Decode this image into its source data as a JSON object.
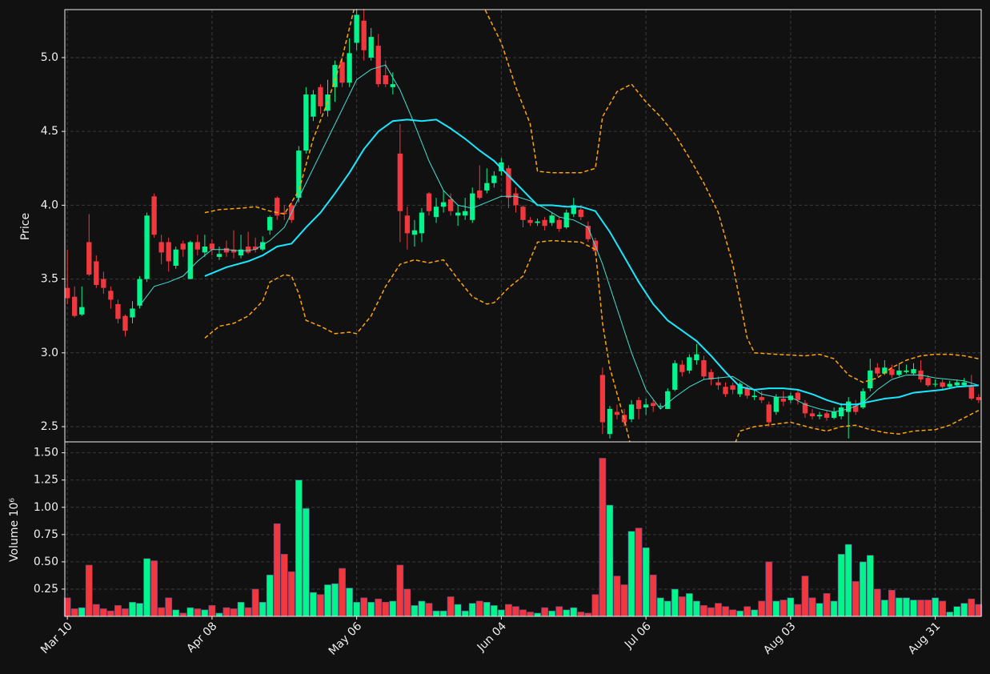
{
  "chart_data": {
    "type": "candlestick",
    "categories": [
      "Mar 10",
      null,
      null,
      null,
      null,
      null,
      null,
      null,
      null,
      null,
      null,
      null,
      null,
      null,
      null,
      null,
      null,
      null,
      null,
      null,
      "Apr 08",
      null,
      null,
      null,
      null,
      null,
      null,
      null,
      null,
      null,
      null,
      null,
      null,
      null,
      null,
      null,
      null,
      null,
      null,
      null,
      "May 06",
      null,
      null,
      null,
      null,
      null,
      null,
      null,
      null,
      null,
      null,
      null,
      null,
      null,
      null,
      null,
      null,
      null,
      null,
      null,
      "Jun 04",
      null,
      null,
      null,
      null,
      null,
      null,
      null,
      null,
      null,
      null,
      null,
      null,
      null,
      null,
      null,
      null,
      null,
      null,
      null,
      "Jul 06",
      null,
      null,
      null,
      null,
      null,
      null,
      null,
      null,
      null,
      null,
      null,
      null,
      null,
      null,
      null,
      null,
      null,
      null,
      null,
      "Aug 03",
      null,
      null,
      null,
      null,
      null,
      null,
      null,
      null,
      null,
      null,
      null,
      null,
      null,
      null,
      null,
      null,
      null,
      null,
      null,
      "Aug 31",
      null,
      null,
      null,
      null,
      null,
      null
    ],
    "open": [
      3.44,
      3.38,
      3.26,
      3.75,
      3.62,
      3.5,
      3.42,
      3.33,
      3.25,
      3.24,
      3.32,
      3.5,
      4.06,
      3.75,
      3.75,
      3.59,
      3.74,
      3.5,
      3.75,
      3.68,
      3.74,
      3.65,
      3.71,
      3.7,
      3.66,
      3.72,
      3.72,
      3.7,
      3.83,
      4.05,
      3.95,
      4.0,
      4.05,
      4.37,
      4.6,
      4.8,
      4.64,
      4.8,
      4.97,
      4.83,
      5.1,
      5.25,
      5.0,
      5.08,
      4.88,
      4.8,
      4.35,
      3.93,
      3.8,
      3.81,
      4.08,
      3.92,
      3.99,
      4.04,
      3.93,
      3.93,
      3.9,
      4.1,
      4.1,
      4.15,
      4.23,
      4.25,
      4.08,
      3.99,
      3.9,
      3.88,
      3.9,
      3.88,
      3.9,
      3.85,
      3.94,
      3.97,
      3.86,
      3.76,
      2.85,
      2.45,
      2.6,
      2.58,
      2.55,
      2.68,
      2.63,
      2.66,
      2.64,
      2.62,
      2.75,
      2.92,
      2.88,
      2.95,
      2.95,
      2.87,
      2.8,
      2.77,
      2.78,
      2.72,
      2.76,
      2.7,
      2.7,
      2.65,
      2.6,
      2.69,
      2.68,
      2.73,
      2.66,
      2.59,
      2.57,
      2.59,
      2.56,
      2.57,
      2.6,
      2.64,
      2.63,
      2.76,
      2.9,
      2.86,
      2.89,
      2.85,
      2.87,
      2.86,
      2.88,
      2.83,
      2.79,
      2.8,
      2.77,
      2.78,
      2.78,
      2.77,
      2.7
    ],
    "high": [
      3.7,
      3.45,
      3.45,
      3.94,
      3.66,
      3.55,
      3.45,
      3.36,
      3.26,
      3.35,
      3.52,
      3.95,
      4.08,
      3.8,
      3.78,
      3.72,
      3.76,
      3.76,
      3.8,
      3.8,
      3.77,
      3.72,
      3.76,
      3.83,
      3.8,
      3.82,
      3.78,
      3.79,
      3.93,
      4.06,
      4.0,
      4.02,
      4.4,
      4.8,
      4.78,
      4.82,
      4.85,
      4.98,
      5.0,
      5.13,
      5.33,
      5.33,
      5.2,
      5.16,
      4.98,
      4.9,
      4.55,
      3.99,
      3.9,
      3.98,
      4.09,
      4.05,
      4.1,
      4.08,
      4.0,
      4.05,
      4.12,
      4.27,
      4.25,
      4.23,
      4.32,
      4.27,
      4.12,
      4.0,
      3.92,
      3.91,
      3.92,
      3.95,
      3.92,
      3.97,
      4.05,
      4.0,
      3.89,
      3.78,
      2.9,
      2.64,
      2.65,
      2.62,
      2.68,
      2.7,
      2.69,
      2.68,
      2.66,
      2.76,
      2.95,
      2.95,
      2.99,
      3.06,
      2.98,
      2.89,
      2.84,
      2.8,
      2.8,
      2.8,
      2.78,
      2.75,
      2.74,
      2.67,
      2.72,
      2.74,
      2.73,
      2.75,
      2.68,
      2.62,
      2.6,
      2.61,
      2.63,
      2.66,
      2.7,
      2.68,
      2.76,
      2.96,
      2.93,
      2.95,
      2.92,
      2.93,
      2.92,
      2.93,
      2.95,
      2.85,
      2.82,
      2.82,
      2.81,
      2.82,
      2.83,
      2.85,
      2.72
    ],
    "low": [
      3.33,
      3.24,
      3.25,
      3.52,
      3.44,
      3.4,
      3.3,
      3.2,
      3.11,
      3.2,
      3.3,
      3.48,
      3.78,
      3.6,
      3.55,
      3.57,
      3.65,
      3.5,
      3.66,
      3.65,
      3.66,
      3.63,
      3.65,
      3.64,
      3.64,
      3.67,
      3.68,
      3.69,
      3.8,
      3.9,
      3.9,
      3.88,
      4.02,
      4.35,
      4.57,
      4.62,
      4.6,
      4.7,
      4.8,
      4.8,
      5.05,
      4.98,
      4.98,
      4.8,
      4.8,
      4.75,
      3.75,
      3.7,
      3.72,
      3.75,
      3.93,
      3.88,
      3.95,
      3.93,
      3.86,
      3.9,
      3.88,
      4.04,
      4.08,
      4.12,
      4.2,
      3.98,
      3.95,
      3.85,
      3.86,
      3.86,
      3.83,
      3.86,
      3.82,
      3.84,
      3.92,
      3.9,
      3.75,
      3.66,
      2.45,
      2.42,
      2.55,
      2.5,
      2.53,
      2.55,
      2.58,
      2.6,
      2.62,
      2.62,
      2.74,
      2.84,
      2.86,
      2.92,
      2.82,
      2.78,
      2.75,
      2.7,
      2.72,
      2.7,
      2.69,
      2.68,
      2.66,
      2.5,
      2.58,
      2.64,
      2.66,
      2.65,
      2.56,
      2.55,
      2.55,
      2.54,
      2.55,
      2.55,
      2.42,
      2.58,
      2.62,
      2.74,
      2.84,
      2.85,
      2.83,
      2.84,
      2.86,
      2.85,
      2.8,
      2.77,
      2.77,
      2.75,
      2.76,
      2.77,
      2.77,
      2.68,
      2.66
    ],
    "close": [
      3.37,
      3.25,
      3.31,
      3.53,
      3.46,
      3.44,
      3.36,
      3.23,
      3.15,
      3.3,
      3.5,
      3.93,
      3.8,
      3.68,
      3.62,
      3.7,
      3.7,
      3.75,
      3.7,
      3.72,
      3.7,
      3.67,
      3.68,
      3.68,
      3.7,
      3.68,
      3.7,
      3.75,
      3.92,
      3.93,
      3.94,
      3.9,
      4.37,
      4.75,
      4.75,
      4.67,
      4.75,
      4.95,
      4.83,
      5.03,
      5.29,
      5.05,
      5.14,
      4.82,
      4.82,
      4.82,
      3.96,
      3.81,
      3.83,
      3.95,
      3.96,
      3.99,
      4.02,
      3.96,
      3.95,
      3.96,
      4.08,
      4.05,
      4.15,
      4.2,
      4.29,
      4.05,
      4.0,
      3.9,
      3.88,
      3.89,
      3.86,
      3.93,
      3.84,
      3.95,
      4.0,
      3.92,
      3.77,
      3.69,
      2.53,
      2.62,
      2.58,
      2.53,
      2.65,
      2.62,
      2.65,
      2.64,
      2.64,
      2.74,
      2.93,
      2.87,
      2.97,
      2.99,
      2.84,
      2.82,
      2.78,
      2.72,
      2.75,
      2.79,
      2.71,
      2.71,
      2.68,
      2.53,
      2.7,
      2.67,
      2.71,
      2.68,
      2.59,
      2.57,
      2.58,
      2.56,
      2.6,
      2.63,
      2.67,
      2.6,
      2.74,
      2.88,
      2.86,
      2.9,
      2.85,
      2.88,
      2.88,
      2.89,
      2.82,
      2.78,
      2.79,
      2.77,
      2.79,
      2.8,
      2.8,
      2.69,
      2.68
    ],
    "volume": [
      0.17,
      0.07,
      0.08,
      0.47,
      0.11,
      0.07,
      0.05,
      0.1,
      0.07,
      0.13,
      0.12,
      0.53,
      0.51,
      0.08,
      0.17,
      0.06,
      0.03,
      0.08,
      0.07,
      0.06,
      0.1,
      0.03,
      0.08,
      0.07,
      0.13,
      0.08,
      0.25,
      0.13,
      0.38,
      0.85,
      0.57,
      0.41,
      1.25,
      0.99,
      0.22,
      0.2,
      0.29,
      0.3,
      0.44,
      0.26,
      0.13,
      0.17,
      0.13,
      0.16,
      0.13,
      0.14,
      0.47,
      0.25,
      0.1,
      0.14,
      0.12,
      0.05,
      0.05,
      0.18,
      0.11,
      0.05,
      0.12,
      0.14,
      0.13,
      0.1,
      0.06,
      0.11,
      0.09,
      0.06,
      0.04,
      0.03,
      0.08,
      0.05,
      0.09,
      0.06,
      0.08,
      0.04,
      0.03,
      0.2,
      1.45,
      1.02,
      0.37,
      0.29,
      0.78,
      0.81,
      0.63,
      0.38,
      0.17,
      0.14,
      0.25,
      0.18,
      0.21,
      0.14,
      0.1,
      0.08,
      0.12,
      0.09,
      0.06,
      0.05,
      0.09,
      0.06,
      0.14,
      0.5,
      0.14,
      0.15,
      0.17,
      0.11,
      0.37,
      0.17,
      0.12,
      0.21,
      0.14,
      0.57,
      0.66,
      0.32,
      0.5,
      0.56,
      0.25,
      0.15,
      0.24,
      0.17,
      0.17,
      0.15,
      0.15,
      0.15,
      0.17,
      0.14,
      0.04,
      0.09,
      0.12,
      0.16,
      0.11
    ],
    "up_color": "#00f58c",
    "down_color": "#f2383f",
    "ylabel": "Price",
    "ylim": [
      2.397,
      5.325
    ],
    "yticks": [
      {
        "value": 2.5,
        "label": "2.5"
      },
      {
        "value": 3.0,
        "label": "3.0"
      },
      {
        "value": 3.5,
        "label": "3.5"
      },
      {
        "value": 4.0,
        "label": "4.0"
      },
      {
        "value": 4.5,
        "label": "4.5"
      },
      {
        "value": 5.0,
        "label": "5.0"
      }
    ],
    "volume_ylabel": "Volume  10⁶",
    "volume_ylim": [
      0,
      1.6
    ],
    "volume_yticks": [
      0.25,
      {
        "value": 0.5,
        "label": "0.50"
      },
      0.75,
      {
        "value": 1.0,
        "label": "1.00"
      },
      1.25,
      {
        "value": 1.5,
        "label": "1.50"
      }
    ],
    "grid": true,
    "overlays": [
      {
        "color": "#40e0d0",
        "width": 1,
        "dash": false,
        "x": [
          10,
          12,
          14,
          16,
          18,
          20,
          22,
          24,
          26,
          28,
          30,
          32,
          34,
          36,
          38,
          40,
          42,
          44,
          46,
          48,
          50,
          52,
          54,
          56,
          58,
          60,
          62,
          64,
          66,
          68,
          70,
          72,
          74,
          76,
          78,
          80,
          82,
          84,
          86,
          88,
          90,
          92,
          94,
          96,
          98,
          100,
          102,
          104,
          106,
          108,
          110,
          112,
          114,
          116,
          118,
          120,
          122,
          124,
          126
        ],
        "values": [
          3.32,
          3.45,
          3.48,
          3.52,
          3.62,
          3.7,
          3.7,
          3.69,
          3.7,
          3.76,
          3.85,
          4.05,
          4.25,
          4.45,
          4.65,
          4.85,
          4.92,
          4.95,
          4.78,
          4.55,
          4.3,
          4.1,
          4.0,
          3.98,
          4.02,
          4.06,
          4.06,
          4.03,
          3.98,
          3.92,
          3.9,
          3.85,
          3.6,
          3.3,
          3.0,
          2.75,
          2.62,
          2.7,
          2.77,
          2.82,
          2.83,
          2.84,
          2.78,
          2.72,
          2.7,
          2.7,
          2.65,
          2.62,
          2.6,
          2.62,
          2.66,
          2.75,
          2.82,
          2.85,
          2.85,
          2.83,
          2.82,
          2.81,
          2.78
        ]
      },
      {
        "color": "#18e8ff",
        "width": 2,
        "dash": false,
        "x": [
          19,
          22,
          25,
          27,
          29,
          31,
          33,
          35,
          37,
          39,
          41,
          43,
          45,
          47,
          49,
          51,
          53,
          55,
          57,
          59,
          61,
          63,
          65,
          67,
          69,
          71,
          73,
          75,
          77,
          79,
          81,
          83,
          85,
          87,
          89,
          91,
          93,
          95,
          97,
          99,
          101,
          103,
          105,
          107,
          109,
          111,
          113,
          115,
          117,
          119,
          121,
          123,
          126
        ],
        "values": [
          3.52,
          3.58,
          3.62,
          3.66,
          3.72,
          3.74,
          3.85,
          3.95,
          4.08,
          4.22,
          4.38,
          4.5,
          4.57,
          4.58,
          4.57,
          4.58,
          4.52,
          4.45,
          4.37,
          4.3,
          4.2,
          4.1,
          4.0,
          4.0,
          3.99,
          3.99,
          3.96,
          3.82,
          3.65,
          3.48,
          3.33,
          3.22,
          3.15,
          3.08,
          2.98,
          2.87,
          2.77,
          2.75,
          2.76,
          2.76,
          2.75,
          2.72,
          2.68,
          2.65,
          2.65,
          2.67,
          2.69,
          2.7,
          2.73,
          2.74,
          2.75,
          2.77,
          2.78
        ]
      },
      {
        "color": "#ffa500",
        "width": 1.5,
        "dash": true,
        "x": [
          19,
          21,
          24,
          26,
          28,
          30,
          32,
          34,
          36,
          38,
          40,
          41,
          57,
          58,
          60,
          62,
          64,
          65,
          67,
          71,
          73,
          74,
          76,
          78,
          80,
          82,
          84,
          86,
          88,
          90,
          92,
          94,
          95,
          98,
          102,
          104,
          106,
          108,
          110,
          112,
          114,
          116,
          118,
          120,
          122,
          124,
          126
        ],
        "values": [
          3.95,
          3.97,
          3.98,
          3.99,
          3.96,
          3.94,
          4.1,
          4.45,
          4.7,
          5.0,
          5.4,
          null,
          5.4,
          5.3,
          5.1,
          4.8,
          4.55,
          4.23,
          4.22,
          4.22,
          4.25,
          4.6,
          4.77,
          4.82,
          4.7,
          4.6,
          4.48,
          4.32,
          4.15,
          3.95,
          3.6,
          3.1,
          3.0,
          2.99,
          2.98,
          2.99,
          2.96,
          2.85,
          2.8,
          2.83,
          2.9,
          2.95,
          2.98,
          2.99,
          2.99,
          2.98,
          2.96
        ]
      },
      {
        "color": "#ffa500",
        "width": 1.5,
        "dash": true,
        "x": [
          19,
          21,
          23,
          25,
          27,
          28,
          30,
          31,
          32,
          33,
          35,
          37,
          39,
          40,
          42,
          44,
          46,
          48,
          50,
          52,
          54,
          56,
          58,
          59,
          61,
          63,
          65,
          67,
          71,
          73,
          74,
          75,
          77,
          78,
          85,
          92,
          93,
          95,
          100,
          103,
          105,
          107,
          109,
          111,
          113,
          115,
          117,
          120,
          122,
          124,
          126
        ],
        "values": [
          3.1,
          3.18,
          3.2,
          3.25,
          3.35,
          3.48,
          3.53,
          3.52,
          3.4,
          3.22,
          3.18,
          3.13,
          3.14,
          3.13,
          3.25,
          3.45,
          3.6,
          3.63,
          3.61,
          3.63,
          3.5,
          3.38,
          3.33,
          3.34,
          3.44,
          3.52,
          3.75,
          3.76,
          3.75,
          3.7,
          3.2,
          2.9,
          2.55,
          2.35,
          null,
          2.35,
          2.47,
          2.5,
          2.53,
          2.49,
          2.47,
          2.5,
          2.51,
          2.48,
          2.46,
          2.45,
          2.47,
          2.48,
          2.51,
          2.56,
          2.61
        ]
      }
    ]
  }
}
